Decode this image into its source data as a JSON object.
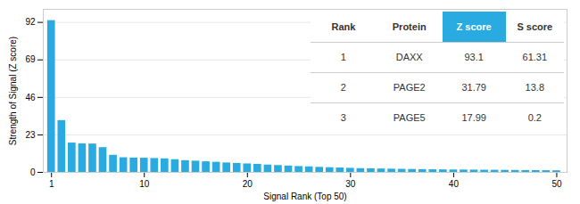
{
  "chart_data": {
    "type": "bar",
    "x": [
      1,
      2,
      3,
      4,
      5,
      6,
      7,
      8,
      9,
      10,
      11,
      12,
      13,
      14,
      15,
      16,
      17,
      18,
      19,
      20,
      21,
      22,
      23,
      24,
      25,
      26,
      27,
      28,
      29,
      30,
      31,
      32,
      33,
      34,
      35,
      36,
      37,
      38,
      39,
      40,
      41,
      42,
      43,
      44,
      45,
      46,
      47,
      48,
      49,
      50
    ],
    "values": [
      93.1,
      31.79,
      17.99,
      17.5,
      17.4,
      15.2,
      10.5,
      9.0,
      8.8,
      8.7,
      8.5,
      8.3,
      7.8,
      7.2,
      6.9,
      6.5,
      6.2,
      5.8,
      5.5,
      5.2,
      4.9,
      4.5,
      4.2,
      3.9,
      3.6,
      3.4,
      3.1,
      2.9,
      2.7,
      2.5,
      2.3,
      2.2,
      2.1,
      2.0,
      1.9,
      1.8,
      1.7,
      1.6,
      1.55,
      1.5,
      1.45,
      1.4,
      1.35,
      1.3,
      1.25,
      1.2,
      1.15,
      1.1,
      1.05,
      1.0
    ],
    "color": "#29ABE2",
    "xlabel": "Signal Rank (Top 50)",
    "ylabel": "Strength of Signal (Z score)",
    "xlim": [
      0.2,
      51.0
    ],
    "ylim": [
      0,
      100
    ],
    "xticks": [
      1,
      10,
      20,
      30,
      40,
      50
    ],
    "yticks": [
      0,
      23,
      46,
      69,
      92
    ],
    "grid": true,
    "table": [
      [
        "Rank",
        "Protein",
        "Z score",
        "S score"
      ],
      [
        "1",
        "DAXX",
        "93.1",
        "61.31"
      ],
      [
        "2",
        "PAGE2",
        "31.79",
        "13.8"
      ],
      [
        "3",
        "PAGE5",
        "17.99",
        "0.2"
      ]
    ]
  }
}
